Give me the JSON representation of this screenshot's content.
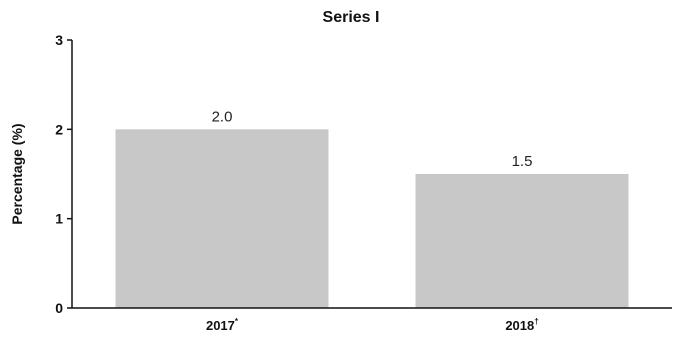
{
  "chart_data": {
    "type": "bar",
    "title": "Series I",
    "ylabel": "Percentage (%)",
    "xlabel": "",
    "categories": [
      {
        "label": "2017",
        "marker": "*"
      },
      {
        "label": "2018",
        "marker": "†"
      }
    ],
    "values": [
      2.0,
      1.5
    ],
    "data_labels": [
      "2.0",
      "1.5"
    ],
    "ylim": [
      0,
      3
    ],
    "yticks": [
      "0",
      "1",
      "2",
      "3"
    ],
    "grid": false,
    "legend": "none",
    "colors": {
      "bar": "#c8c8c8",
      "axis": "#111111"
    }
  }
}
